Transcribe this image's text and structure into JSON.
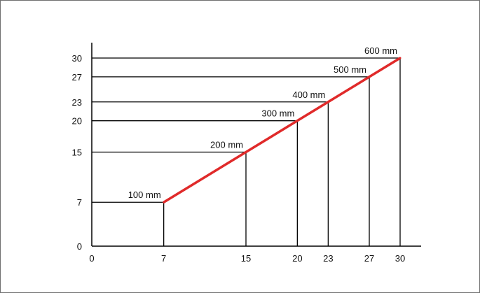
{
  "chart_data": {
    "type": "line",
    "title": "",
    "xlabel": "",
    "ylabel": "",
    "xlim": [
      0,
      30
    ],
    "ylim": [
      0,
      30
    ],
    "x_ticks": [
      0,
      7,
      15,
      20,
      23,
      27,
      30
    ],
    "y_ticks": [
      0,
      7,
      15,
      20,
      23,
      27,
      30
    ],
    "grid": false,
    "series": [
      {
        "color": "#e02a2a",
        "points": [
          {
            "x": 7,
            "y": 7,
            "label": "100 mm"
          },
          {
            "x": 15,
            "y": 15,
            "label": "200 mm"
          },
          {
            "x": 20,
            "y": 20,
            "label": "300 mm"
          },
          {
            "x": 23,
            "y": 23,
            "label": "400 mm"
          },
          {
            "x": 27,
            "y": 27,
            "label": "500 mm"
          },
          {
            "x": 30,
            "y": 30,
            "label": "600 mm"
          }
        ]
      }
    ],
    "guide_color": "#000000"
  }
}
